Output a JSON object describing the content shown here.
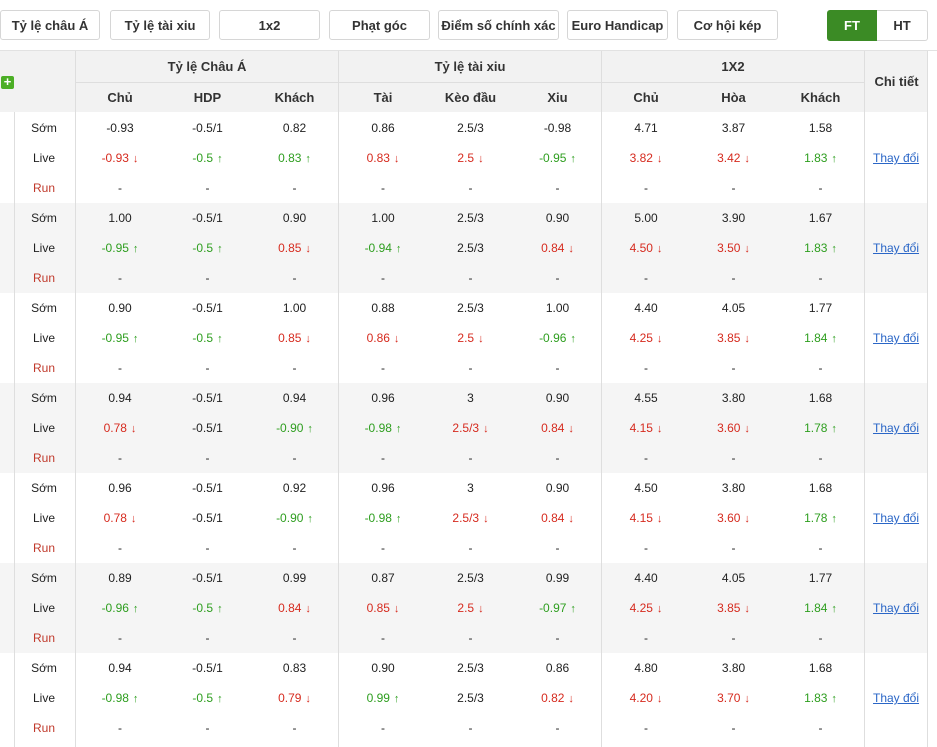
{
  "tabs": [
    "Tỷ lệ châu Á",
    "Tỷ lệ tài xiu",
    "1x2",
    "Phạt góc",
    "Điểm số chính xác",
    "Euro Handicap",
    "Cơ hội kép"
  ],
  "period": {
    "ft": "FT",
    "ht": "HT"
  },
  "header": {
    "add_icon": "+",
    "groups": [
      "Tỷ lệ Châu Á",
      "Tỷ lệ tài xiu",
      "1X2"
    ],
    "detail": "Chi tiết",
    "cols": [
      "Chủ",
      "HDP",
      "Khách",
      "Tài",
      "Kèo đầu",
      "Xiu",
      "Chủ",
      "Hòa",
      "Khách"
    ]
  },
  "row_labels": {
    "early": "Sớm",
    "live": "Live",
    "run": "Run"
  },
  "detail_link": "Thay đổi",
  "arrows": {
    "up": "↑",
    "down": "↓"
  },
  "empty": "-",
  "bookmakers": [
    {
      "early": [
        "-0.93",
        "-0.5/1",
        "0.82",
        "0.86",
        "2.5/3",
        "-0.98",
        "4.71",
        "3.87",
        "1.58"
      ],
      "live": [
        [
          "-0.93",
          "down"
        ],
        [
          "-0.5",
          "up"
        ],
        [
          "0.83",
          "up"
        ],
        [
          "0.83",
          "down"
        ],
        [
          "2.5",
          "down"
        ],
        [
          "-0.95",
          "up"
        ],
        [
          "3.82",
          "down"
        ],
        [
          "3.42",
          "down"
        ],
        [
          "1.83",
          "up"
        ]
      ]
    },
    {
      "early": [
        "1.00",
        "-0.5/1",
        "0.90",
        "1.00",
        "2.5/3",
        "0.90",
        "5.00",
        "3.90",
        "1.67"
      ],
      "live": [
        [
          "-0.95",
          "up"
        ],
        [
          "-0.5",
          "up"
        ],
        [
          "0.85",
          "down"
        ],
        [
          "-0.94",
          "up"
        ],
        [
          "2.5/3",
          ""
        ],
        [
          "0.84",
          "down"
        ],
        [
          "4.50",
          "down"
        ],
        [
          "3.50",
          "down"
        ],
        [
          "1.83",
          "up"
        ]
      ]
    },
    {
      "early": [
        "0.90",
        "-0.5/1",
        "1.00",
        "0.88",
        "2.5/3",
        "1.00",
        "4.40",
        "4.05",
        "1.77"
      ],
      "live": [
        [
          "-0.95",
          "up"
        ],
        [
          "-0.5",
          "up"
        ],
        [
          "0.85",
          "down"
        ],
        [
          "0.86",
          "down"
        ],
        [
          "2.5",
          "down"
        ],
        [
          "-0.96",
          "up"
        ],
        [
          "4.25",
          "down"
        ],
        [
          "3.85",
          "down"
        ],
        [
          "1.84",
          "up"
        ]
      ]
    },
    {
      "early": [
        "0.94",
        "-0.5/1",
        "0.94",
        "0.96",
        "3",
        "0.90",
        "4.55",
        "3.80",
        "1.68"
      ],
      "live": [
        [
          "0.78",
          "down"
        ],
        [
          "-0.5/1",
          ""
        ],
        [
          "-0.90",
          "up"
        ],
        [
          "-0.98",
          "up"
        ],
        [
          "2.5/3",
          "down"
        ],
        [
          "0.84",
          "down"
        ],
        [
          "4.15",
          "down"
        ],
        [
          "3.60",
          "down"
        ],
        [
          "1.78",
          "up"
        ]
      ]
    },
    {
      "early": [
        "0.96",
        "-0.5/1",
        "0.92",
        "0.96",
        "3",
        "0.90",
        "4.50",
        "3.80",
        "1.68"
      ],
      "live": [
        [
          "0.78",
          "down"
        ],
        [
          "-0.5/1",
          ""
        ],
        [
          "-0.90",
          "up"
        ],
        [
          "-0.98",
          "up"
        ],
        [
          "2.5/3",
          "down"
        ],
        [
          "0.84",
          "down"
        ],
        [
          "4.15",
          "down"
        ],
        [
          "3.60",
          "down"
        ],
        [
          "1.78",
          "up"
        ]
      ]
    },
    {
      "early": [
        "0.89",
        "-0.5/1",
        "0.99",
        "0.87",
        "2.5/3",
        "0.99",
        "4.40",
        "4.05",
        "1.77"
      ],
      "live": [
        [
          "-0.96",
          "up"
        ],
        [
          "-0.5",
          "up"
        ],
        [
          "0.84",
          "down"
        ],
        [
          "0.85",
          "down"
        ],
        [
          "2.5",
          "down"
        ],
        [
          "-0.97",
          "up"
        ],
        [
          "4.25",
          "down"
        ],
        [
          "3.85",
          "down"
        ],
        [
          "1.84",
          "up"
        ]
      ]
    },
    {
      "early": [
        "0.94",
        "-0.5/1",
        "0.83",
        "0.90",
        "2.5/3",
        "0.86",
        "4.80",
        "3.80",
        "1.68"
      ],
      "live": [
        [
          "-0.98",
          "up"
        ],
        [
          "-0.5",
          "up"
        ],
        [
          "0.79",
          "down"
        ],
        [
          "0.99",
          "up"
        ],
        [
          "2.5/3",
          ""
        ],
        [
          "0.82",
          "down"
        ],
        [
          "4.20",
          "down"
        ],
        [
          "3.70",
          "down"
        ],
        [
          "1.83",
          "up"
        ]
      ]
    }
  ],
  "colors": {
    "up": "#2e9e1f",
    "down": "#d62b1f",
    "active_tab": "#3b8b25",
    "link": "#2a66c7",
    "run": "#c0392b"
  }
}
